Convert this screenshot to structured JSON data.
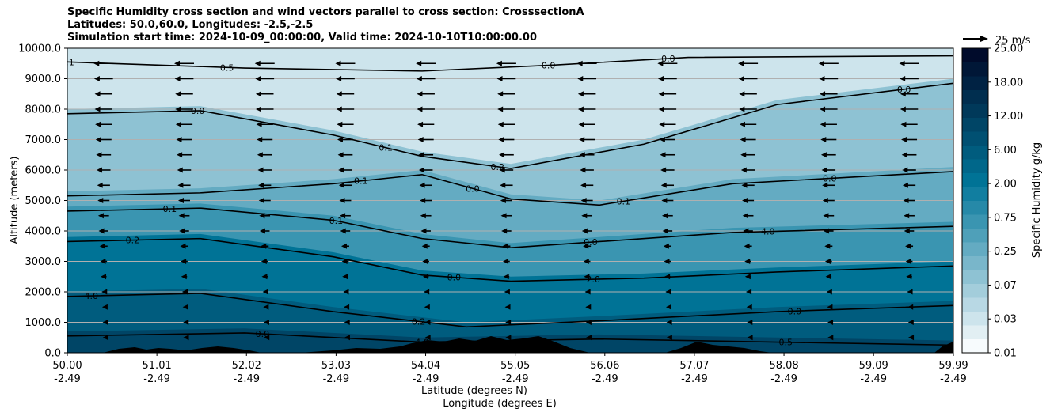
{
  "chart_data": {
    "type": "heatmap",
    "title_lines": [
      "Specific Humidity cross section and wind vectors parallel to cross section: CrosssectionA",
      "Latitudes: 50.0,60.0, Longitudes: -2.5,-2.5",
      "Simulation start time: 2024-10-09_00:00:00, Valid time: 2024-10-10T10:00:00.00"
    ],
    "ylabel": "Altitude (meters)",
    "xlabel_lat": "Latitude (degrees N)",
    "xlabel_lon": "Longitude (degrees E)",
    "ylim": [
      0,
      10000
    ],
    "yticks": [
      "0.0",
      "1000.0",
      "2000.0",
      "3000.0",
      "4000.0",
      "5000.0",
      "6000.0",
      "7000.0",
      "8000.0",
      "9000.0",
      "10000.0"
    ],
    "ytick_values": [
      0,
      1000,
      2000,
      3000,
      4000,
      5000,
      6000,
      7000,
      8000,
      9000,
      10000
    ],
    "xlim": [
      50.0,
      59.99
    ],
    "xticks_lat": [
      "50.00",
      "51.01",
      "52.02",
      "53.03",
      "54.04",
      "55.05",
      "56.06",
      "57.07",
      "58.08",
      "59.09",
      "59.99"
    ],
    "xticks_lon": [
      "-2.49",
      "-2.49",
      "-2.49",
      "-2.49",
      "-2.49",
      "-2.49",
      "-2.49",
      "-2.49",
      "-2.49",
      "-2.49",
      "-2.49"
    ],
    "xtick_values": [
      50.0,
      51.01,
      52.02,
      53.03,
      54.04,
      55.05,
      56.06,
      57.07,
      58.08,
      59.09,
      59.99
    ],
    "grid": "horizontal",
    "colorbar": {
      "label": "Specific Humidity g/kg",
      "tick_labels": [
        "0.01",
        "0.03",
        "0.07",
        "0.25",
        "0.75",
        "2.00",
        "6.00",
        "12.00",
        "18.00",
        "25.00"
      ],
      "colors": [
        "#f7fbfd",
        "#e2eff3",
        "#cde4ec",
        "#b8d8e4",
        "#a3cddb",
        "#8ec2d3",
        "#79b6ca",
        "#64abc2",
        "#4fa0b9",
        "#3a95b1",
        "#2689a8",
        "#117ea0",
        "#007396",
        "#00678a",
        "#005c7e",
        "#005072",
        "#004566",
        "#00395a",
        "#002e4f",
        "#002243",
        "#001737",
        "#000b2b"
      ]
    },
    "quiver_key": "25 m/s",
    "contour_labels": [
      "0.1",
      "0.1",
      "0.1",
      "0.1",
      "0.0",
      "0.0",
      "0.0",
      "0.0",
      "0.0",
      "0.1",
      "0.0",
      "0.2",
      "0.2",
      "0.5",
      "0.5",
      "0.2",
      "0.0",
      "0.1",
      "2.0",
      "4.0",
      "4.0",
      "0.0",
      "0.0",
      "0.0",
      "4.0"
    ],
    "humidity_bands": [
      {
        "level": "0.03",
        "profile": [
          [
            50.0,
            9700
          ],
          [
            52.0,
            9500
          ],
          [
            54.0,
            9400
          ],
          [
            55.5,
            9600
          ],
          [
            57.0,
            9850
          ],
          [
            59.99,
            9900
          ]
        ]
      },
      {
        "level": "0.07",
        "profile": [
          [
            50.0,
            8000
          ],
          [
            51.5,
            8100
          ],
          [
            53.0,
            7300
          ],
          [
            54.0,
            6600
          ],
          [
            55.0,
            6200
          ],
          [
            56.5,
            7000
          ],
          [
            58.0,
            8300
          ],
          [
            59.99,
            9000
          ]
        ]
      },
      {
        "level": "0.25",
        "profile": [
          [
            50.0,
            5300
          ],
          [
            51.5,
            5400
          ],
          [
            53.0,
            5700
          ],
          [
            54.0,
            6000
          ],
          [
            55.0,
            5200
          ],
          [
            56.0,
            5000
          ],
          [
            57.5,
            5700
          ],
          [
            59.99,
            6100
          ]
        ]
      },
      {
        "level": "0.75",
        "profile": [
          [
            50.0,
            4800
          ],
          [
            51.5,
            4900
          ],
          [
            53.0,
            4500
          ],
          [
            54.0,
            3900
          ],
          [
            55.0,
            3600
          ],
          [
            56.0,
            3800
          ],
          [
            57.5,
            4100
          ],
          [
            59.99,
            4300
          ]
        ]
      },
      {
        "level": "2.00",
        "profile": [
          [
            50.0,
            3800
          ],
          [
            51.5,
            3900
          ],
          [
            53.0,
            3300
          ],
          [
            54.0,
            2700
          ],
          [
            55.0,
            2500
          ],
          [
            56.5,
            2600
          ],
          [
            58.0,
            2800
          ],
          [
            59.99,
            3000
          ]
        ]
      },
      {
        "level": "6.00",
        "profile": [
          [
            50.0,
            2000
          ],
          [
            51.5,
            2100
          ],
          [
            53.0,
            1500
          ],
          [
            54.5,
            1000
          ],
          [
            56.0,
            1200
          ],
          [
            58.0,
            1500
          ],
          [
            59.99,
            1700
          ]
        ]
      },
      {
        "level": "12.00",
        "profile": [
          [
            50.0,
            700
          ],
          [
            52.0,
            800
          ],
          [
            54.0,
            500
          ],
          [
            56.0,
            600
          ],
          [
            58.0,
            500
          ],
          [
            59.99,
            400
          ]
        ]
      }
    ],
    "wind_vectors": {
      "direction": "negative-x",
      "heights": [
        9500,
        9000,
        8500,
        8000,
        7500,
        7000,
        6500,
        6000,
        5500,
        5000,
        4500,
        4000,
        3500,
        3000,
        2500,
        2000,
        1500,
        1000,
        500
      ],
      "speeds_ms": [
        20,
        19,
        18,
        18,
        17,
        16,
        15,
        14,
        13,
        12,
        11,
        10,
        8,
        7,
        6,
        4,
        3,
        2,
        1
      ]
    }
  }
}
